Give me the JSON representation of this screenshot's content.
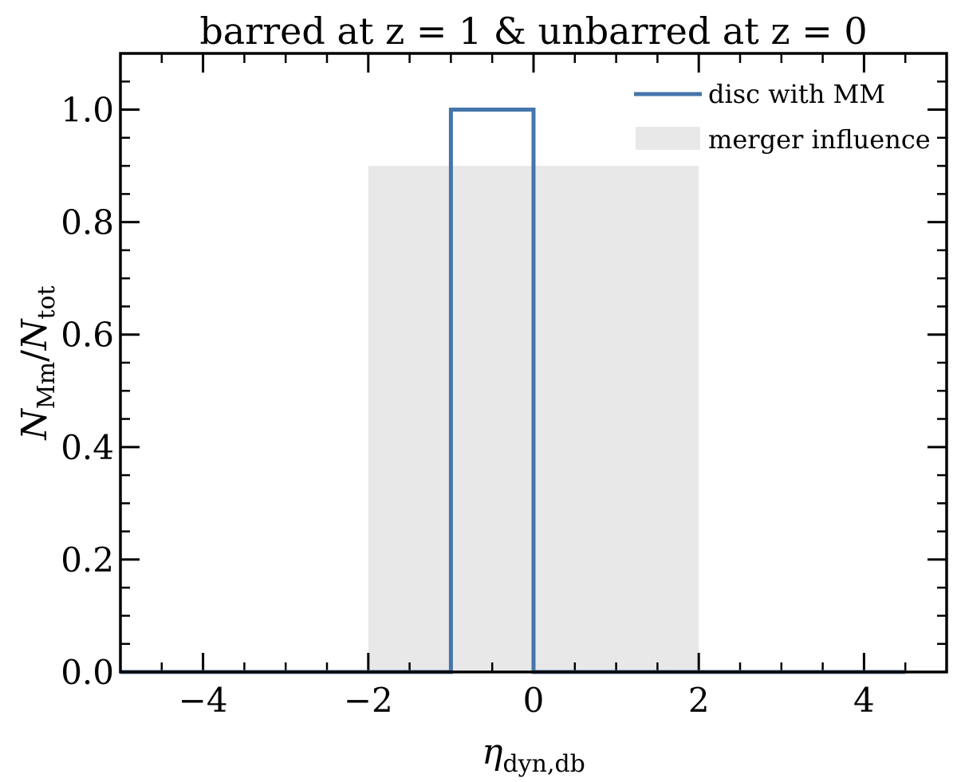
{
  "chart_data": {
    "type": "histogram",
    "title": "barred at z = 1 & unbarred at z = 0",
    "xlabel": {
      "symbol": "η",
      "subscript": "dyn,db"
    },
    "ylabel": {
      "num_symbol": "N",
      "num_subscript": "Mm",
      "den_symbol": "N",
      "den_subscript": "tot"
    },
    "xlim": [
      -5,
      5
    ],
    "ylim": [
      0,
      1.1
    ],
    "x_ticks": [
      -4,
      -2,
      0,
      2,
      4
    ],
    "x_tick_labels": [
      "−4",
      "−2",
      "0",
      "2",
      "4"
    ],
    "y_ticks": [
      0.0,
      0.2,
      0.4,
      0.6,
      0.8,
      1.0
    ],
    "y_tick_labels": [
      "0.0",
      "0.2",
      "0.4",
      "0.6",
      "0.8",
      "1.0"
    ],
    "series": [
      {
        "name": "disc with MM",
        "style": "step",
        "color": "#4575aa",
        "bin_edges": [
          -5,
          -4,
          -3,
          -2,
          -1,
          0,
          1,
          2,
          3,
          4,
          4.5
        ],
        "values": [
          0,
          0,
          0,
          0,
          1.0,
          0,
          0,
          0,
          0,
          0
        ]
      }
    ],
    "shaded_region": {
      "name": "merger influence",
      "color": "#e8e8e8",
      "x_range": [
        -2,
        2
      ],
      "y_max": 0.9
    },
    "legend": {
      "placement": "top-right",
      "entries": [
        "disc with MM",
        "merger influence"
      ]
    },
    "grid": false
  }
}
